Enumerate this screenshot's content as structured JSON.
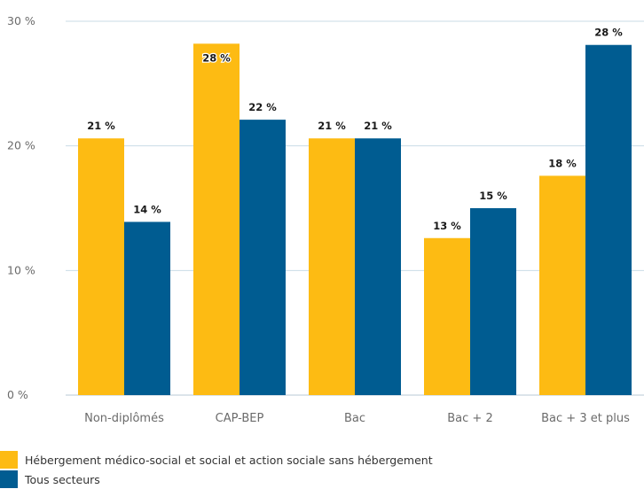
{
  "chart_data": {
    "type": "bar",
    "categories": [
      "Non-diplômés",
      "CAP-BEP",
      "Bac",
      "Bac + 2",
      "Bac + 3 et plus"
    ],
    "series": [
      {
        "name": "Hébergement médico-social et social et action sociale sans hébergement",
        "color": "#FDBB13",
        "values": [
          20.6,
          28.2,
          20.6,
          12.6,
          17.6
        ],
        "labels": [
          "21 %",
          "28 %",
          "21 %",
          "13 %",
          "18 %"
        ]
      },
      {
        "name": "Tous secteurs",
        "color": "#005C91",
        "values": [
          13.9,
          22.1,
          20.6,
          15.0,
          28.1
        ],
        "labels": [
          "14 %",
          "22 %",
          "21 %",
          "15 %",
          "28 %"
        ]
      }
    ],
    "y_ticks": [
      {
        "value": 0,
        "label": "0 %"
      },
      {
        "value": 10,
        "label": "10 %"
      },
      {
        "value": 20,
        "label": "20 %"
      },
      {
        "value": 30,
        "label": "30 %"
      }
    ],
    "ylim": [
      0,
      30
    ],
    "grid": true,
    "legend_position": "bottom-left"
  }
}
